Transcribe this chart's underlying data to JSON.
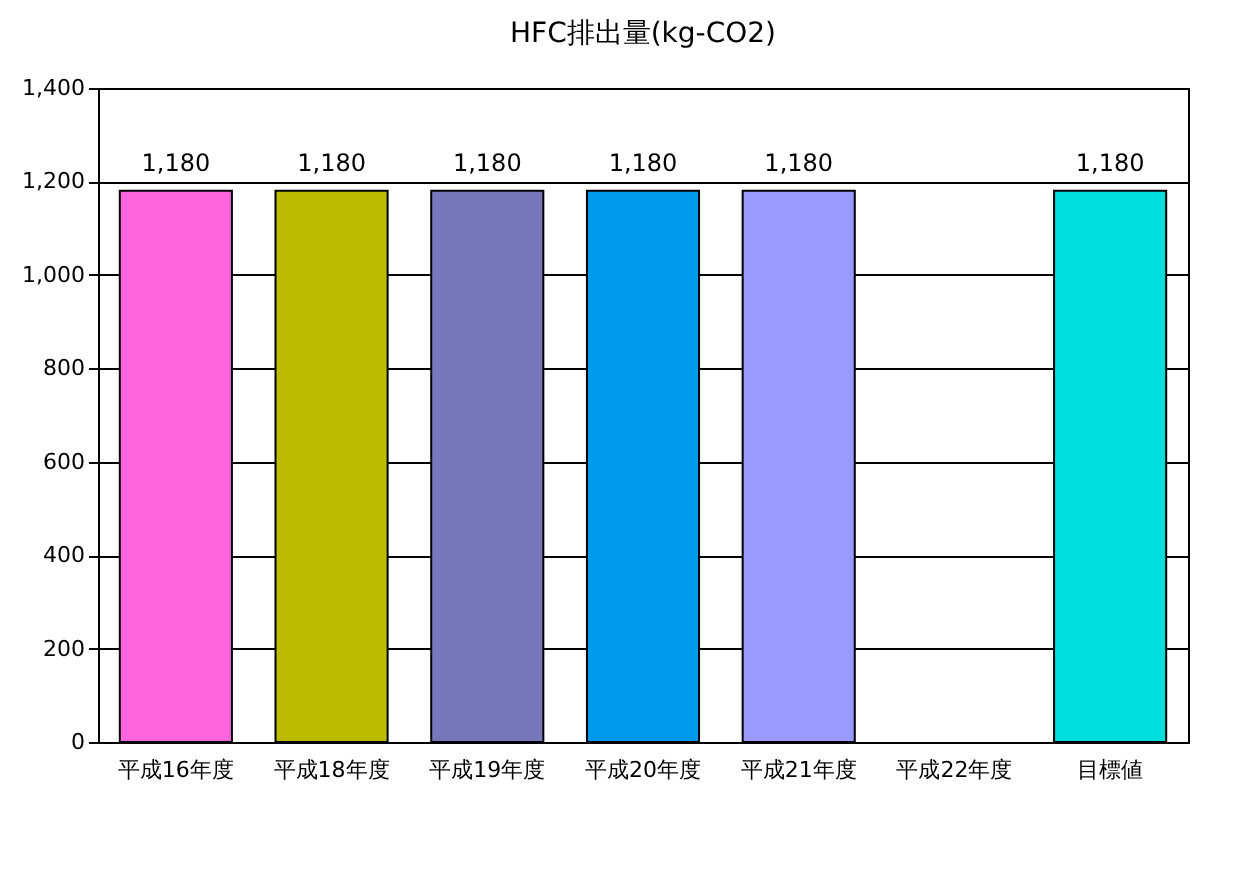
{
  "chart_data": {
    "type": "bar",
    "title": "HFC排出量(kg-CO2)",
    "categories": [
      "平成16年度",
      "平成18年度",
      "平成19年度",
      "平成20年度",
      "平成21年度",
      "平成22年度",
      "目標値"
    ],
    "values": [
      1180,
      1180,
      1180,
      1180,
      1180,
      null,
      1180
    ],
    "value_labels": [
      "1,180",
      "1,180",
      "1,180",
      "1,180",
      "1,180",
      null,
      "1,180"
    ],
    "colors": [
      "#ff66dd",
      "#bbbb00",
      "#7777bb",
      "#0099ee",
      "#9999ff",
      null,
      "#00dddd"
    ],
    "ylim": [
      0,
      1400
    ],
    "yticks": [
      0,
      {
        "value": 200,
        "label": "200"
      },
      {
        "value": 400,
        "label": "400"
      },
      {
        "value": 600,
        "label": "600"
      },
      {
        "value": 800,
        "label": "800"
      },
      {
        "value": 1000,
        "label": "1,000"
      },
      {
        "value": 1200,
        "label": "1,200"
      },
      {
        "value": 1400,
        "label": "1,400"
      }
    ],
    "grid": "y"
  }
}
